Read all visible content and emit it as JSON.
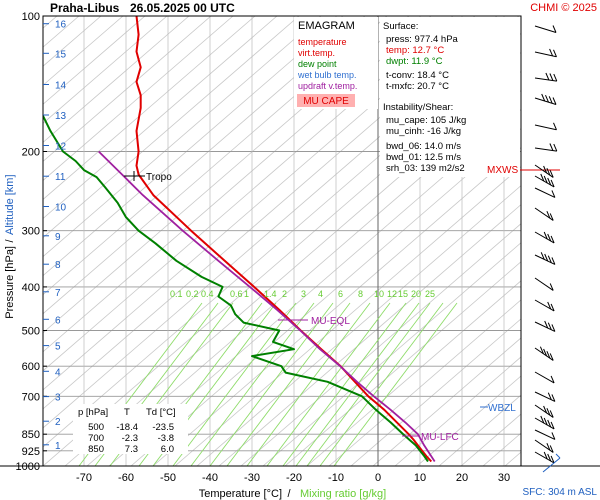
{
  "header": {
    "station": "Praha-Libus",
    "datetime": "26.05.2025 00 UTC",
    "credit": "CHMI © 2025"
  },
  "legend": {
    "title": "EMAGRAM",
    "items": [
      {
        "label": "temperature",
        "color": "#e00000"
      },
      {
        "label": "virt.temp.",
        "color": "#e00000"
      },
      {
        "label": "dew point",
        "color": "#008000"
      },
      {
        "label": "wet bulb temp.",
        "color": "#3070d0"
      },
      {
        "label": "updraft v.temp.",
        "color": "#a020a0"
      }
    ],
    "badge": "MU CAPE",
    "badge_color": "#ffb0b0"
  },
  "surface": {
    "heading": "Surface:",
    "lines": [
      {
        "label": "press",
        "value": "977.4 hPa",
        "color": "#000000"
      },
      {
        "label": "temp",
        "value": "12.7 °C",
        "color": "#e00000"
      },
      {
        "label": "dwpt",
        "value": "11.9 °C",
        "color": "#008000"
      },
      {
        "label": "t-conv",
        "value": "18.4 °C",
        "color": "#000000"
      },
      {
        "label": "t-mxfc",
        "value": "20.7 °C",
        "color": "#000000"
      }
    ]
  },
  "instability": {
    "heading": "Instability/Shear:",
    "lines": [
      {
        "label": "mu_cape",
        "value": "105 J/kg"
      },
      {
        "label": "mu_cinh",
        "value": "-16 J/kg"
      },
      {
        "label": "bwd_06",
        "value": "14.0 m/s"
      },
      {
        "label": "bwd_01",
        "value": "12.5 m/s"
      },
      {
        "label": "srh_03",
        "value": "139 m2/s2"
      }
    ]
  },
  "table": {
    "headers": [
      "p [hPa]",
      "T",
      "Td [°C]"
    ],
    "rows": [
      [
        "500",
        "-18.4",
        "-23.5"
      ],
      [
        "700",
        "-2.3",
        "-3.8"
      ],
      [
        "850",
        "7.3",
        "6.0"
      ]
    ]
  },
  "annotations": {
    "tropo": "Tropo",
    "mu_eql": "MU-EQL",
    "mu_lfc": "MU-LFC",
    "wbzl": "WBZL",
    "mxws": "MXWS",
    "sfc": "SFC: 304 m ASL"
  },
  "axes": {
    "xlabel_temp": "Temperature [°C]",
    "xlabel_sep": "/",
    "xlabel_mix": "Mixing ratio [g/kg]",
    "ylabel_p": "Pressure [hPa]",
    "ylabel_sep": "/",
    "ylabel_alt": "Altitude [km]"
  },
  "chart_data": {
    "type": "line",
    "title": "EMAGRAM",
    "xlabel": "Temperature [°C] / Mixing ratio [g/kg]",
    "ylabel": "Pressure [hPa] / Altitude [km]",
    "xlim": [
      -80,
      35
    ],
    "ylim": [
      1000,
      100
    ],
    "y_scale": "log",
    "x_ticks": [
      -70,
      -60,
      -50,
      -40,
      -30,
      -20,
      -10,
      0,
      10,
      20,
      30
    ],
    "p_ticks": [
      100,
      200,
      300,
      400,
      500,
      600,
      700,
      850,
      925,
      1000
    ],
    "alt_ticks": [
      {
        "km": 1,
        "p": 897
      },
      {
        "km": 2,
        "p": 795
      },
      {
        "km": 3,
        "p": 701
      },
      {
        "km": 4,
        "p": 616
      },
      {
        "km": 5,
        "p": 540
      },
      {
        "km": 6,
        "p": 472
      },
      {
        "km": 7,
        "p": 410
      },
      {
        "km": 8,
        "p": 356
      },
      {
        "km": 9,
        "p": 308
      },
      {
        "km": 10,
        "p": 265
      },
      {
        "km": 11,
        "p": 227
      },
      {
        "km": 12,
        "p": 194
      },
      {
        "km": 13,
        "p": 166
      },
      {
        "km": 14,
        "p": 142
      },
      {
        "km": 15,
        "p": 121
      },
      {
        "km": 16,
        "p": 104
      }
    ],
    "mixing_ratio_labels": [
      "0.1",
      "0.2",
      "0.4",
      "0.6",
      "1",
      "1.4",
      "2",
      "3",
      "4",
      "6",
      "8",
      "10",
      "12",
      "15",
      "20",
      "25"
    ],
    "series": [
      {
        "name": "temperature",
        "color": "#e00000",
        "points": [
          [
            977,
            12.7
          ],
          [
            950,
            11.5
          ],
          [
            925,
            10.5
          ],
          [
            900,
            9.5
          ],
          [
            875,
            8.5
          ],
          [
            850,
            7.3
          ],
          [
            800,
            4.5
          ],
          [
            750,
            1.5
          ],
          [
            700,
            -2.3
          ],
          [
            650,
            -5.5
          ],
          [
            600,
            -8.9
          ],
          [
            550,
            -13.5
          ],
          [
            500,
            -18.4
          ],
          [
            450,
            -23.5
          ],
          [
            400,
            -29.5
          ],
          [
            350,
            -36.5
          ],
          [
            300,
            -44.5
          ],
          [
            250,
            -53.5
          ],
          [
            225,
            -57
          ],
          [
            215,
            -57.5
          ],
          [
            200,
            -57
          ],
          [
            180,
            -57.5
          ],
          [
            160,
            -56.5
          ],
          [
            150,
            -56.5
          ],
          [
            140,
            -57.5
          ],
          [
            130,
            -56.5
          ],
          [
            120,
            -57.5
          ],
          [
            110,
            -57
          ],
          [
            100,
            -57.5
          ]
        ]
      },
      {
        "name": "dew point",
        "color": "#008000",
        "points": [
          [
            977,
            11.9
          ],
          [
            950,
            11.0
          ],
          [
            925,
            10.0
          ],
          [
            900,
            9.0
          ],
          [
            875,
            7.5
          ],
          [
            850,
            6.0
          ],
          [
            800,
            3.0
          ],
          [
            750,
            -0.5
          ],
          [
            700,
            -3.8
          ],
          [
            650,
            -12
          ],
          [
            620,
            -22
          ],
          [
            600,
            -23
          ],
          [
            570,
            -30
          ],
          [
            550,
            -20
          ],
          [
            530,
            -25
          ],
          [
            500,
            -23.5
          ],
          [
            480,
            -32
          ],
          [
            460,
            -34
          ],
          [
            440,
            -35
          ],
          [
            420,
            -38
          ],
          [
            400,
            -37
          ],
          [
            380,
            -42
          ],
          [
            350,
            -48
          ],
          [
            320,
            -53
          ],
          [
            300,
            -57
          ],
          [
            280,
            -60
          ],
          [
            260,
            -62
          ],
          [
            240,
            -65
          ],
          [
            228,
            -67
          ],
          [
            220,
            -70
          ],
          [
            210,
            -72
          ],
          [
            200,
            -75
          ],
          [
            180,
            -78
          ],
          [
            165,
            -80
          ]
        ]
      },
      {
        "name": "updraft v.temp.",
        "color": "#a020a0",
        "points": [
          [
            977,
            13.5
          ],
          [
            900,
            11
          ],
          [
            850,
            9.5
          ],
          [
            800,
            6.5
          ],
          [
            750,
            3
          ],
          [
            700,
            -1
          ],
          [
            650,
            -5
          ],
          [
            600,
            -9
          ],
          [
            550,
            -13.8
          ],
          [
            500,
            -18.5
          ],
          [
            450,
            -24
          ],
          [
            400,
            -30.5
          ],
          [
            350,
            -38
          ],
          [
            300,
            -46.5
          ],
          [
            250,
            -56
          ],
          [
            220,
            -62
          ],
          [
            200,
            -66.5
          ]
        ]
      }
    ]
  }
}
